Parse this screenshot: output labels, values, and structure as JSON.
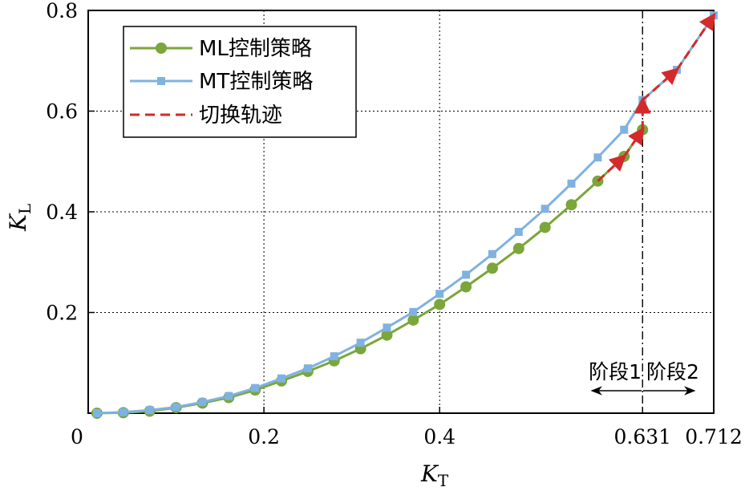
{
  "chart_data": {
    "type": "line",
    "xlabel": {
      "main": "K",
      "sub": "T"
    },
    "ylabel": {
      "main": "K",
      "sub": "L"
    },
    "xlim": [
      0,
      0.712
    ],
    "ylim": [
      0,
      0.8
    ],
    "x_tick_labels": [
      {
        "value": 0,
        "label": "0"
      },
      {
        "value": 0.2,
        "label": "0.2"
      },
      {
        "value": 0.4,
        "label": "0.4"
      },
      {
        "value": 0.631,
        "label": "0.631"
      },
      {
        "value": 0.712,
        "label": "0.712"
      }
    ],
    "y_tick_labels": [
      {
        "value": 0.2,
        "label": "0.2"
      },
      {
        "value": 0.4,
        "label": "0.4"
      },
      {
        "value": 0.6,
        "label": "0.6"
      },
      {
        "value": 0.8,
        "label": "0.8"
      }
    ],
    "grid": true,
    "legend_position": "top-left",
    "series": [
      {
        "name": "ML控制策略",
        "color": "#7aa63a",
        "marker": "circle",
        "x": [
          0.01,
          0.04,
          0.07,
          0.1,
          0.13,
          0.16,
          0.19,
          0.22,
          0.25,
          0.28,
          0.31,
          0.34,
          0.37,
          0.4,
          0.43,
          0.46,
          0.49,
          0.52,
          0.55,
          0.58,
          0.61,
          0.631
        ],
        "y": [
          0.0,
          0.001,
          0.004,
          0.011,
          0.02,
          0.031,
          0.046,
          0.064,
          0.083,
          0.104,
          0.128,
          0.155,
          0.185,
          0.216,
          0.251,
          0.288,
          0.327,
          0.369,
          0.414,
          0.461,
          0.51,
          0.563
        ]
      },
      {
        "name": "MT控制策略",
        "color": "#7fb2e0",
        "marker": "square",
        "x": [
          0.01,
          0.04,
          0.07,
          0.1,
          0.13,
          0.16,
          0.19,
          0.22,
          0.25,
          0.28,
          0.31,
          0.34,
          0.37,
          0.4,
          0.43,
          0.46,
          0.49,
          0.52,
          0.55,
          0.58,
          0.61,
          0.631,
          0.67,
          0.712
        ],
        "y": [
          0.0,
          0.002,
          0.006,
          0.012,
          0.022,
          0.034,
          0.05,
          0.069,
          0.089,
          0.113,
          0.14,
          0.17,
          0.201,
          0.237,
          0.275,
          0.316,
          0.36,
          0.406,
          0.456,
          0.508,
          0.563,
          0.622,
          0.682,
          0.79
        ]
      }
    ],
    "switch_trajectory": {
      "name": "切换轨迹",
      "color": "#d42a2a",
      "x": [
        0.58,
        0.61,
        0.631,
        0.631,
        0.67,
        0.712
      ],
      "y": [
        0.461,
        0.51,
        0.563,
        0.622,
        0.682,
        0.79
      ]
    },
    "annotations": {
      "stage1": "阶段1",
      "stage2": "阶段2"
    }
  }
}
